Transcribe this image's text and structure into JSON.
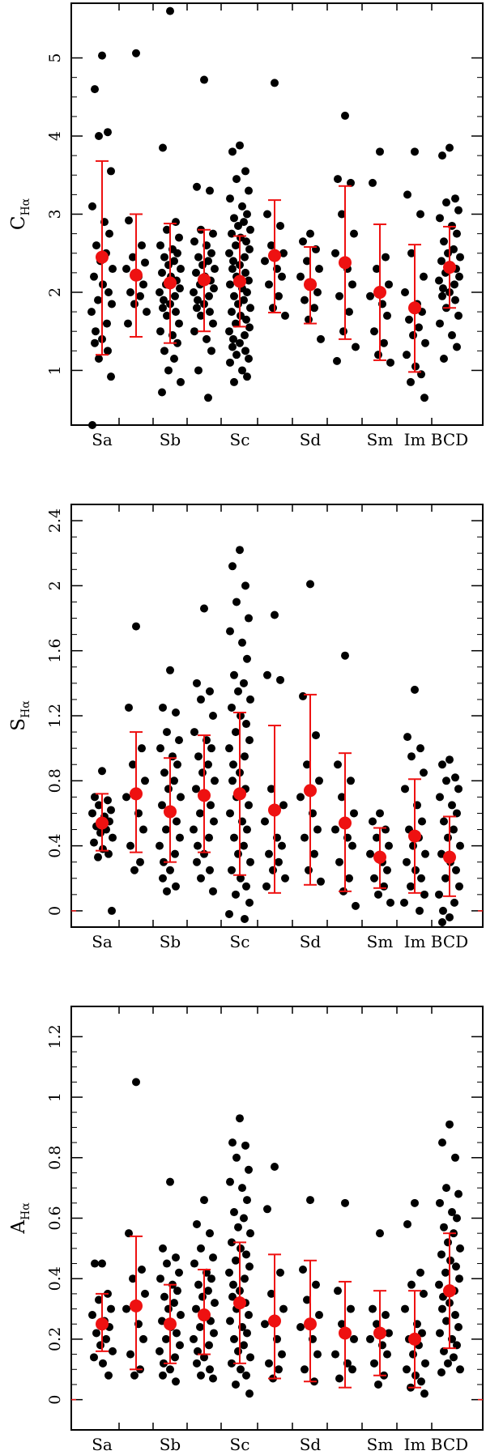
{
  "chart_data": [
    {
      "type": "scatter",
      "ylabel_main": "C",
      "ylabel_sub": "Hα",
      "ylim": [
        0.3,
        5.7
      ],
      "yticks": [
        "1",
        "2",
        "3",
        "4",
        "5"
      ],
      "category_labels": [
        "Sa",
        "Sb",
        "Sc",
        "Sd",
        "Sm",
        "Im",
        "BCD"
      ],
      "groups": [
        {
          "mean": 2.45,
          "lo": 1.2,
          "hi": 3.68,
          "points": [
            5.03,
            4.6,
            4.05,
            4.0,
            3.55,
            3.1,
            2.9,
            2.75,
            2.6,
            2.5,
            2.4,
            2.3,
            2.2,
            2.1,
            2.0,
            1.9,
            1.85,
            1.75,
            1.6,
            1.5,
            1.4,
            1.35,
            1.25,
            1.15,
            0.92,
            0.3
          ]
        },
        {
          "mean": 2.22,
          "lo": 1.43,
          "hi": 3.0,
          "points": [
            5.06,
            2.92,
            2.6,
            2.45,
            2.38,
            2.3,
            2.2,
            2.1,
            2.0,
            1.95,
            1.85,
            1.75,
            1.6
          ]
        },
        {
          "mean": 2.12,
          "lo": 1.35,
          "hi": 2.88,
          "points": [
            5.6,
            3.85,
            2.9,
            2.8,
            2.7,
            2.6,
            2.55,
            2.5,
            2.45,
            2.4,
            2.35,
            2.3,
            2.25,
            2.2,
            2.15,
            2.1,
            2.05,
            2.0,
            1.95,
            1.9,
            1.85,
            1.8,
            1.75,
            1.7,
            1.6,
            1.5,
            1.45,
            1.35,
            1.25,
            1.15,
            1.0,
            0.85,
            0.72
          ]
        },
        {
          "mean": 2.16,
          "lo": 1.5,
          "hi": 2.8,
          "points": [
            4.72,
            3.35,
            3.3,
            2.8,
            2.75,
            2.65,
            2.6,
            2.5,
            2.45,
            2.4,
            2.35,
            2.3,
            2.25,
            2.2,
            2.15,
            2.1,
            2.05,
            2.0,
            1.95,
            1.9,
            1.85,
            1.8,
            1.75,
            1.7,
            1.6,
            1.5,
            1.4,
            1.25,
            1.0,
            0.65
          ]
        },
        {
          "mean": 2.14,
          "lo": 1.56,
          "hi": 2.72,
          "points": [
            3.88,
            3.8,
            3.55,
            3.45,
            3.3,
            3.2,
            3.1,
            3.0,
            2.95,
            2.9,
            2.85,
            2.8,
            2.75,
            2.7,
            2.65,
            2.6,
            2.55,
            2.5,
            2.45,
            2.4,
            2.35,
            2.3,
            2.25,
            2.2,
            2.15,
            2.1,
            2.05,
            2.0,
            1.95,
            1.9,
            1.85,
            1.8,
            1.75,
            1.7,
            1.65,
            1.6,
            1.55,
            1.5,
            1.45,
            1.4,
            1.35,
            1.3,
            1.25,
            1.2,
            1.15,
            1.1,
            1.0,
            0.92,
            0.85
          ]
        },
        {
          "mean": 2.47,
          "lo": 1.74,
          "hi": 3.18,
          "points": [
            4.68,
            3.0,
            2.85,
            2.6,
            2.5,
            2.4,
            2.3,
            2.2,
            2.1,
            1.95,
            1.8,
            1.7
          ]
        },
        {
          "mean": 2.1,
          "lo": 1.6,
          "hi": 2.58,
          "points": [
            2.75,
            2.65,
            2.55,
            2.4,
            2.3,
            2.2,
            2.1,
            2.0,
            1.9,
            1.8,
            1.65,
            1.4
          ]
        },
        {
          "mean": 2.38,
          "lo": 1.4,
          "hi": 3.36,
          "points": [
            4.26,
            3.45,
            3.4,
            3.0,
            2.75,
            2.5,
            2.3,
            2.1,
            1.95,
            1.75,
            1.5,
            1.3,
            1.12
          ]
        },
        {
          "mean": 2.0,
          "lo": 1.13,
          "hi": 2.87,
          "points": [
            3.8,
            3.4,
            2.45,
            2.3,
            2.1,
            1.95,
            1.85,
            1.7,
            1.5,
            1.35,
            1.2,
            1.1
          ]
        },
        {
          "mean": 1.8,
          "lo": 0.98,
          "hi": 2.61,
          "points": [
            3.8,
            3.25,
            3.0,
            2.5,
            2.2,
            2.0,
            1.85,
            1.75,
            1.65,
            1.55,
            1.45,
            1.35,
            1.2,
            1.05,
            0.95,
            0.85,
            0.65
          ]
        },
        {
          "mean": 2.32,
          "lo": 1.8,
          "hi": 2.84,
          "points": [
            3.85,
            3.75,
            3.2,
            3.15,
            3.05,
            2.95,
            2.85,
            2.75,
            2.65,
            2.55,
            2.5,
            2.45,
            2.4,
            2.35,
            2.3,
            2.25,
            2.2,
            2.15,
            2.1,
            2.05,
            2.0,
            1.95,
            1.9,
            1.8,
            1.7,
            1.6,
            1.45,
            1.3,
            1.15
          ]
        }
      ]
    },
    {
      "type": "scatter",
      "ylabel_main": "S",
      "ylabel_sub": "Hα",
      "ylim": [
        -0.1,
        2.5
      ],
      "yticks": [
        "0",
        "0.4",
        "0.8",
        "1.2",
        "1.6",
        "2",
        "2.4"
      ],
      "category_labels": [
        "Sa",
        "Sb",
        "Sc",
        "Sd",
        "Sm",
        "Im",
        "BCD"
      ],
      "groups": [
        {
          "mean": 0.54,
          "lo": 0.37,
          "hi": 0.72,
          "points": [
            0.86,
            0.7,
            0.68,
            0.65,
            0.62,
            0.6,
            0.58,
            0.55,
            0.52,
            0.5,
            0.48,
            0.45,
            0.42,
            0.38,
            0.35,
            0.33,
            0.0
          ]
        },
        {
          "mean": 0.72,
          "lo": 0.36,
          "hi": 1.1,
          "points": [
            1.75,
            1.25,
            1.0,
            0.9,
            0.8,
            0.7,
            0.6,
            0.5,
            0.4,
            0.3,
            0.25
          ]
        },
        {
          "mean": 0.61,
          "lo": 0.3,
          "hi": 0.94,
          "points": [
            1.48,
            1.25,
            1.22,
            1.1,
            1.05,
            1.0,
            0.95,
            0.9,
            0.85,
            0.8,
            0.75,
            0.7,
            0.65,
            0.6,
            0.55,
            0.5,
            0.45,
            0.4,
            0.35,
            0.3,
            0.25,
            0.2,
            0.15,
            0.12
          ]
        },
        {
          "mean": 0.71,
          "lo": 0.36,
          "hi": 1.08,
          "points": [
            1.86,
            1.4,
            1.35,
            1.3,
            1.2,
            1.1,
            1.05,
            1.0,
            0.95,
            0.9,
            0.85,
            0.8,
            0.75,
            0.7,
            0.65,
            0.6,
            0.55,
            0.5,
            0.45,
            0.4,
            0.35,
            0.3,
            0.25,
            0.2,
            0.12
          ]
        },
        {
          "mean": 0.72,
          "lo": 0.22,
          "hi": 1.22,
          "points": [
            2.22,
            2.12,
            2.0,
            1.9,
            1.8,
            1.72,
            1.65,
            1.55,
            1.45,
            1.4,
            1.35,
            1.3,
            1.25,
            1.2,
            1.15,
            1.1,
            1.05,
            1.0,
            0.95,
            0.9,
            0.85,
            0.8,
            0.75,
            0.7,
            0.65,
            0.6,
            0.55,
            0.5,
            0.45,
            0.4,
            0.35,
            0.3,
            0.25,
            0.2,
            0.15,
            0.1,
            0.05,
            -0.02,
            -0.05
          ]
        },
        {
          "mean": 0.62,
          "lo": 0.11,
          "hi": 1.14,
          "points": [
            1.82,
            1.45,
            1.42,
            0.75,
            0.65,
            0.55,
            0.45,
            0.4,
            0.35,
            0.3,
            0.25,
            0.2,
            0.15
          ]
        },
        {
          "mean": 0.74,
          "lo": 0.16,
          "hi": 1.33,
          "points": [
            2.01,
            1.32,
            1.08,
            0.9,
            0.8,
            0.7,
            0.6,
            0.5,
            0.45,
            0.35,
            0.25,
            0.18
          ]
        },
        {
          "mean": 0.54,
          "lo": 0.12,
          "hi": 0.97,
          "points": [
            1.57,
            0.9,
            0.8,
            0.7,
            0.6,
            0.5,
            0.45,
            0.4,
            0.3,
            0.2,
            0.12,
            0.03
          ]
        },
        {
          "mean": 0.33,
          "lo": 0.14,
          "hi": 0.51,
          "points": [
            0.6,
            0.55,
            0.5,
            0.45,
            0.4,
            0.35,
            0.3,
            0.25,
            0.2,
            0.15,
            0.1,
            0.05
          ]
        },
        {
          "mean": 0.46,
          "lo": 0.11,
          "hi": 0.81,
          "points": [
            1.36,
            1.07,
            1.0,
            0.95,
            0.85,
            0.75,
            0.65,
            0.55,
            0.5,
            0.45,
            0.4,
            0.35,
            0.3,
            0.25,
            0.2,
            0.15,
            0.1,
            0.05,
            0.0
          ]
        },
        {
          "mean": 0.33,
          "lo": 0.09,
          "hi": 0.58,
          "points": [
            0.93,
            0.9,
            0.82,
            0.8,
            0.75,
            0.7,
            0.65,
            0.6,
            0.55,
            0.5,
            0.45,
            0.4,
            0.35,
            0.3,
            0.25,
            0.2,
            0.15,
            0.1,
            0.05,
            0.0,
            -0.04,
            -0.07
          ]
        }
      ]
    },
    {
      "type": "scatter",
      "ylabel_main": "A",
      "ylabel_sub": "Hα",
      "ylim": [
        -0.1,
        1.3
      ],
      "yticks": [
        "0",
        "0.2",
        "0.4",
        "0.6",
        "0.8",
        "1",
        "1.2"
      ],
      "category_labels": [
        "Sa",
        "Sb",
        "Sc",
        "Sd",
        "Sm",
        "Im",
        "BCD"
      ],
      "groups": [
        {
          "mean": 0.25,
          "lo": 0.16,
          "hi": 0.35,
          "points": [
            0.45,
            0.45,
            0.35,
            0.33,
            0.3,
            0.28,
            0.26,
            0.24,
            0.22,
            0.2,
            0.18,
            0.16,
            0.14,
            0.12,
            0.08
          ]
        },
        {
          "mean": 0.31,
          "lo": 0.1,
          "hi": 0.54,
          "points": [
            1.05,
            0.55,
            0.43,
            0.4,
            0.35,
            0.3,
            0.25,
            0.2,
            0.15,
            0.1,
            0.08
          ]
        },
        {
          "mean": 0.25,
          "lo": 0.12,
          "hi": 0.38,
          "points": [
            0.72,
            0.5,
            0.47,
            0.45,
            0.42,
            0.4,
            0.38,
            0.36,
            0.34,
            0.32,
            0.3,
            0.28,
            0.26,
            0.24,
            0.22,
            0.2,
            0.18,
            0.16,
            0.14,
            0.12,
            0.1,
            0.08,
            0.06
          ]
        },
        {
          "mean": 0.28,
          "lo": 0.15,
          "hi": 0.43,
          "points": [
            0.66,
            0.58,
            0.55,
            0.5,
            0.47,
            0.45,
            0.42,
            0.4,
            0.38,
            0.36,
            0.34,
            0.32,
            0.3,
            0.28,
            0.26,
            0.24,
            0.22,
            0.2,
            0.18,
            0.16,
            0.14,
            0.12,
            0.1,
            0.08,
            0.07
          ]
        },
        {
          "mean": 0.32,
          "lo": 0.12,
          "hi": 0.52,
          "points": [
            0.93,
            0.85,
            0.84,
            0.8,
            0.76,
            0.72,
            0.7,
            0.66,
            0.62,
            0.6,
            0.57,
            0.55,
            0.52,
            0.5,
            0.48,
            0.46,
            0.44,
            0.42,
            0.4,
            0.38,
            0.36,
            0.34,
            0.32,
            0.3,
            0.28,
            0.26,
            0.24,
            0.22,
            0.2,
            0.18,
            0.16,
            0.14,
            0.12,
            0.1,
            0.08,
            0.05,
            0.02
          ]
        },
        {
          "mean": 0.26,
          "lo": 0.07,
          "hi": 0.48,
          "points": [
            0.77,
            0.63,
            0.42,
            0.35,
            0.3,
            0.25,
            0.2,
            0.15,
            0.12,
            0.1,
            0.07
          ]
        },
        {
          "mean": 0.25,
          "lo": 0.06,
          "hi": 0.46,
          "points": [
            0.66,
            0.43,
            0.38,
            0.33,
            0.28,
            0.24,
            0.2,
            0.15,
            0.1,
            0.06
          ]
        },
        {
          "mean": 0.22,
          "lo": 0.04,
          "hi": 0.39,
          "points": [
            0.65,
            0.36,
            0.3,
            0.25,
            0.2,
            0.15,
            0.12,
            0.1,
            0.07
          ]
        },
        {
          "mean": 0.22,
          "lo": 0.08,
          "hi": 0.36,
          "points": [
            0.55,
            0.3,
            0.28,
            0.25,
            0.22,
            0.2,
            0.18,
            0.15,
            0.12,
            0.08,
            0.05
          ]
        },
        {
          "mean": 0.2,
          "lo": 0.04,
          "hi": 0.36,
          "points": [
            0.65,
            0.58,
            0.42,
            0.38,
            0.35,
            0.3,
            0.25,
            0.22,
            0.2,
            0.18,
            0.15,
            0.12,
            0.1,
            0.08,
            0.06,
            0.04,
            0.02
          ]
        },
        {
          "mean": 0.36,
          "lo": 0.17,
          "hi": 0.55,
          "points": [
            0.91,
            0.85,
            0.8,
            0.7,
            0.68,
            0.65,
            0.62,
            0.6,
            0.57,
            0.55,
            0.52,
            0.5,
            0.48,
            0.46,
            0.44,
            0.42,
            0.4,
            0.38,
            0.36,
            0.34,
            0.32,
            0.3,
            0.28,
            0.26,
            0.24,
            0.22,
            0.2,
            0.18,
            0.16,
            0.14,
            0.12,
            0.1,
            0.09
          ]
        }
      ]
    }
  ],
  "colors": {
    "points": "#000000",
    "mean_marker": "#ee1111",
    "error_bar": "#ee1111",
    "axes": "#000000"
  }
}
